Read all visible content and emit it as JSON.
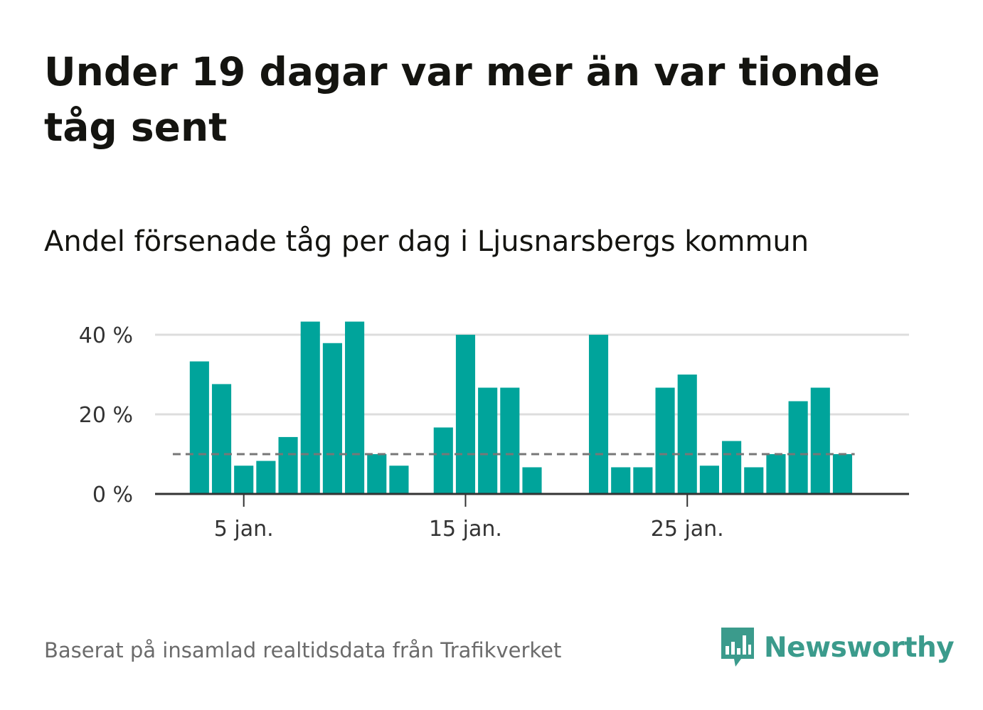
{
  "title": "Under 19 dagar var mer än var tionde tåg sent",
  "subtitle": "Andel försenade tåg per dag i Ljusnarsbergs kommun",
  "footer": "Baserat på insamlad realtidsdata från Trafikverket",
  "logo": {
    "name": "Newsworthy",
    "icon": "newsworthy-bars-icon"
  },
  "colors": {
    "bar": "#00a49b",
    "reference_line": "#777777",
    "grid": "#dddddd",
    "axis": "#333333",
    "logo": "#3b9b8c"
  },
  "chart_data": {
    "type": "bar",
    "x": [
      3,
      4,
      5,
      6,
      7,
      8,
      9,
      10,
      11,
      12,
      14,
      15,
      16,
      17,
      18,
      21,
      22,
      23,
      24,
      25,
      26,
      27,
      28,
      29,
      30,
      31,
      32
    ],
    "values": [
      33.3,
      27.6,
      7.1,
      8.3,
      14.3,
      43.3,
      37.9,
      43.3,
      10.0,
      7.1,
      16.7,
      40.0,
      26.7,
      26.7,
      6.7,
      40.0,
      6.7,
      6.7,
      26.7,
      30.0,
      7.1,
      13.3,
      6.7,
      10.0,
      23.3,
      26.7,
      10.0
    ],
    "reference_value": 10,
    "x_ticks": [
      {
        "x": 5,
        "label": "5 jan."
      },
      {
        "x": 15,
        "label": "15 jan."
      },
      {
        "x": 25,
        "label": "25 jan."
      }
    ],
    "y_ticks": [
      {
        "value": 0,
        "label": "0 %"
      },
      {
        "value": 20,
        "label": "20 %"
      },
      {
        "value": 40,
        "label": "40 %"
      }
    ],
    "xlim": [
      1,
      35
    ],
    "ylim": [
      0,
      40
    ],
    "grid": true,
    "legend": "none"
  }
}
